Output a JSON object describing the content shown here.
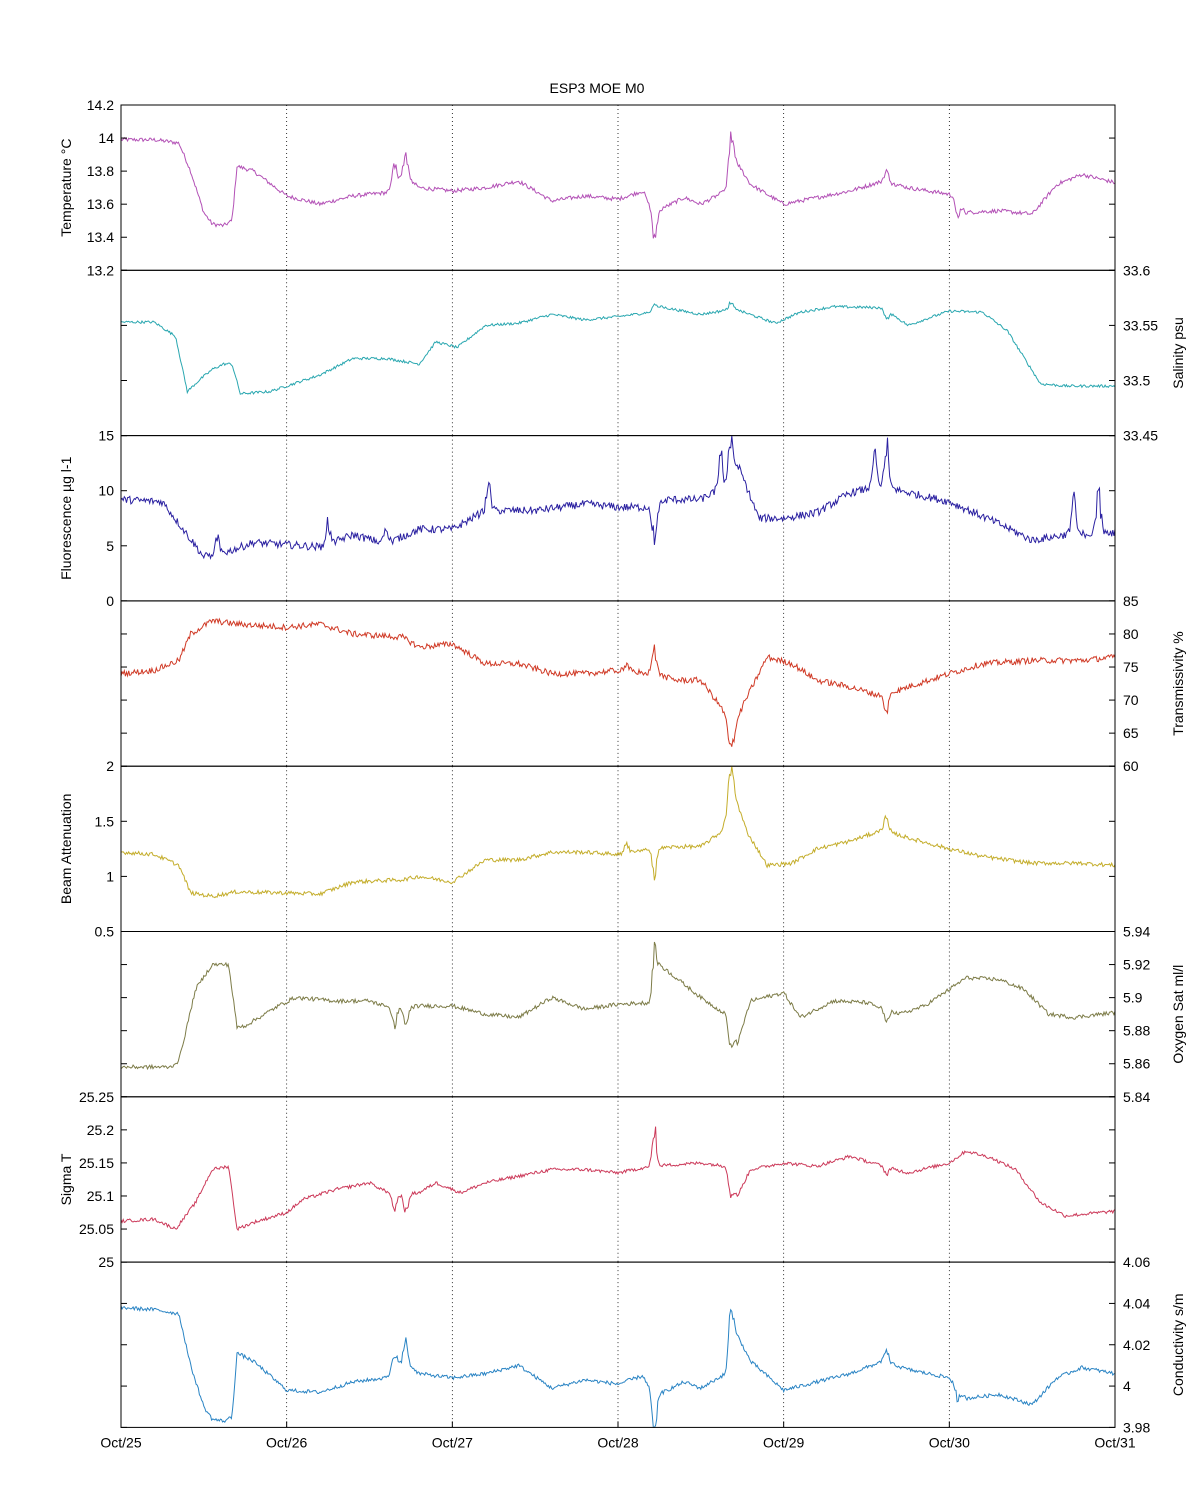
{
  "chart_data": {
    "type": "line",
    "title": "ESP3 MOE   M0",
    "x_ticks": [
      "Oct/25",
      "Oct/26",
      "Oct/27",
      "Oct/28",
      "Oct/29",
      "Oct/30",
      "Oct/31"
    ],
    "xlim_days": [
      25,
      31
    ],
    "grid": "vertical dotted at each day",
    "panels": [
      {
        "name": "Temperature",
        "ylabel": "Temperature °C",
        "axis_side": "left",
        "ylim": [
          13.2,
          14.2
        ],
        "yticks": [
          "13.2",
          "13.4",
          "13.6",
          "13.8",
          "14",
          "14.2"
        ],
        "ytick_values": [
          13.2,
          13.4,
          13.6,
          13.8,
          14.0,
          14.2
        ],
        "color": "#b351b6",
        "noise": 0.012,
        "spikes": [
          [
            26.65,
            0.12
          ],
          [
            26.72,
            0.15
          ],
          [
            28.22,
            -0.22
          ],
          [
            28.68,
            0.2
          ],
          [
            29.62,
            0.07
          ],
          [
            30.05,
            -0.08
          ]
        ],
        "series": {
          "x": [
            25.0,
            25.2,
            25.35,
            25.42,
            25.5,
            25.55,
            25.62,
            25.67,
            25.7,
            25.8,
            26.0,
            26.2,
            26.4,
            26.6,
            26.7,
            26.8,
            27.0,
            27.2,
            27.4,
            27.6,
            27.8,
            28.0,
            28.15,
            28.22,
            28.4,
            28.5,
            28.65,
            28.7,
            28.8,
            29.0,
            29.2,
            29.4,
            29.6,
            29.75,
            30.0,
            30.1,
            30.3,
            30.5,
            30.65,
            30.8,
            31.0
          ],
          "y": [
            13.99,
            13.99,
            13.97,
            13.8,
            13.55,
            13.48,
            13.47,
            13.5,
            13.83,
            13.8,
            13.65,
            13.6,
            13.65,
            13.67,
            13.78,
            13.7,
            13.68,
            13.7,
            13.74,
            13.62,
            13.65,
            13.63,
            13.68,
            13.55,
            13.64,
            13.6,
            13.68,
            13.88,
            13.72,
            13.6,
            13.64,
            13.68,
            13.74,
            13.7,
            13.66,
            13.55,
            13.56,
            13.54,
            13.72,
            13.78,
            13.73
          ]
        }
      },
      {
        "name": "Salinity",
        "ylabel": "Salinity psu",
        "axis_side": "right",
        "ylim": [
          33.45,
          33.6
        ],
        "yticks": [
          "33.45",
          "33.5",
          "33.55",
          "33.6"
        ],
        "ytick_values": [
          33.45,
          33.5,
          33.55,
          33.6
        ],
        "color": "#2aa7b0",
        "noise": 0.0012,
        "spikes": [
          [
            28.22,
            0.006
          ],
          [
            28.68,
            0.007
          ],
          [
            29.62,
            -0.01
          ]
        ],
        "series": {
          "x": [
            25.0,
            25.2,
            25.33,
            25.4,
            25.47,
            25.55,
            25.62,
            25.67,
            25.72,
            25.9,
            26.2,
            26.4,
            26.6,
            26.8,
            26.9,
            27.03,
            27.2,
            27.4,
            27.6,
            27.8,
            28.0,
            28.2,
            28.25,
            28.5,
            28.7,
            28.95,
            29.1,
            29.3,
            29.6,
            29.75,
            29.9,
            30.0,
            30.2,
            30.35,
            30.55,
            30.7,
            31.0
          ],
          "y": [
            33.553,
            33.553,
            33.54,
            33.49,
            33.5,
            33.51,
            33.515,
            33.515,
            33.488,
            33.49,
            33.505,
            33.52,
            33.52,
            33.515,
            33.535,
            33.53,
            33.55,
            33.552,
            33.56,
            33.555,
            33.558,
            33.562,
            33.567,
            33.56,
            33.565,
            33.552,
            33.562,
            33.567,
            33.566,
            33.55,
            33.558,
            33.563,
            33.562,
            33.545,
            33.497,
            33.495,
            33.495
          ]
        }
      },
      {
        "name": "Fluorescence",
        "ylabel": "Fluorescence µg l-1",
        "axis_side": "left",
        "ylim": [
          0,
          15
        ],
        "yticks": [
          "0",
          "5",
          "10",
          "15"
        ],
        "ytick_values": [
          0,
          5,
          10,
          15
        ],
        "color": "#2b21a1",
        "noise": 0.35,
        "spikes": [
          [
            25.58,
            1.5
          ],
          [
            26.25,
            2.0
          ],
          [
            26.6,
            1.5
          ],
          [
            27.22,
            2.5
          ],
          [
            28.22,
            -3.5
          ],
          [
            28.62,
            3.0
          ],
          [
            28.68,
            4.0
          ],
          [
            29.55,
            3.0
          ],
          [
            29.62,
            4.2
          ],
          [
            30.75,
            3.5
          ],
          [
            30.9,
            4.5
          ]
        ],
        "series": {
          "x": [
            25.0,
            25.25,
            25.35,
            25.5,
            25.65,
            25.8,
            26.0,
            26.2,
            26.4,
            26.6,
            26.8,
            27.0,
            27.2,
            27.5,
            27.8,
            28.0,
            28.2,
            28.3,
            28.5,
            28.65,
            28.72,
            28.85,
            29.0,
            29.2,
            29.4,
            29.6,
            29.7,
            30.0,
            30.3,
            30.5,
            30.7,
            31.0
          ],
          "y": [
            9.2,
            9.0,
            7.0,
            4.0,
            4.5,
            5.3,
            5.1,
            4.9,
            6.0,
            5.2,
            6.5,
            6.5,
            8.2,
            8.2,
            8.8,
            8.5,
            8.5,
            9.2,
            9.2,
            10.5,
            12.5,
            7.5,
            7.5,
            8.0,
            9.8,
            10.5,
            10.0,
            9.0,
            7.0,
            5.5,
            6.0,
            6.2
          ]
        }
      },
      {
        "name": "Transmissivity",
        "ylabel": "Transmissivity %",
        "axis_side": "right",
        "ylim": [
          60,
          85
        ],
        "yticks": [
          "60",
          "65",
          "70",
          "75",
          "80",
          "85"
        ],
        "ytick_values": [
          60,
          65,
          70,
          75,
          80,
          85
        ],
        "color": "#d03a26",
        "noise": 0.45,
        "spikes": [
          [
            28.22,
            4.5
          ],
          [
            28.68,
            -4.0
          ],
          [
            29.62,
            -2.5
          ],
          [
            28.05,
            1.5
          ]
        ],
        "series": {
          "x": [
            25.0,
            25.2,
            25.35,
            25.42,
            25.55,
            25.7,
            26.0,
            26.2,
            26.4,
            26.7,
            26.8,
            27.0,
            27.2,
            27.4,
            27.6,
            27.8,
            28.0,
            28.22,
            28.35,
            28.5,
            28.62,
            28.7,
            28.75,
            28.9,
            29.05,
            29.2,
            29.4,
            29.6,
            29.75,
            30.0,
            30.2,
            30.5,
            30.8,
            31.0
          ],
          "y": [
            74.0,
            74.5,
            76.0,
            80.0,
            82.0,
            81.5,
            81.0,
            81.5,
            80.0,
            79.5,
            78.0,
            78.5,
            75.5,
            75.5,
            74.0,
            74.0,
            74.5,
            74.0,
            73.0,
            73.0,
            69.0,
            65.0,
            69.0,
            76.5,
            75.5,
            73.0,
            72.0,
            70.5,
            72.0,
            74.0,
            75.5,
            76.0,
            76.0,
            76.5
          ]
        }
      },
      {
        "name": "Beam Attenuation",
        "ylabel": "Beam Attenuation",
        "axis_side": "left",
        "ylim": [
          0.5,
          2
        ],
        "yticks": [
          "0.5",
          "1",
          "1.5",
          "2"
        ],
        "ytick_values": [
          0.5,
          1.0,
          1.5,
          2.0
        ],
        "color": "#c4ad2b",
        "noise": 0.018,
        "spikes": [
          [
            28.22,
            -0.25
          ],
          [
            28.68,
            0.35
          ],
          [
            29.62,
            0.15
          ],
          [
            28.05,
            0.1
          ]
        ],
        "series": {
          "x": [
            25.0,
            25.2,
            25.35,
            25.42,
            25.55,
            25.7,
            26.0,
            26.2,
            26.4,
            26.7,
            26.8,
            27.0,
            27.2,
            27.4,
            27.6,
            27.8,
            28.0,
            28.22,
            28.35,
            28.5,
            28.62,
            28.7,
            28.78,
            28.9,
            29.05,
            29.2,
            29.4,
            29.6,
            29.75,
            30.0,
            30.2,
            30.5,
            30.8,
            31.0
          ],
          "y": [
            1.22,
            1.2,
            1.1,
            0.85,
            0.82,
            0.86,
            0.85,
            0.84,
            0.95,
            0.97,
            1.0,
            0.95,
            1.15,
            1.15,
            1.22,
            1.22,
            1.2,
            1.25,
            1.27,
            1.27,
            1.4,
            1.75,
            1.4,
            1.1,
            1.12,
            1.25,
            1.32,
            1.42,
            1.35,
            1.25,
            1.18,
            1.12,
            1.12,
            1.1
          ]
        }
      },
      {
        "name": "Oxygen Sat",
        "ylabel": "Oxygen Sat ml/l",
        "axis_side": "right",
        "ylim": [
          5.84,
          5.94
        ],
        "yticks": [
          "5.84",
          "5.86",
          "5.88",
          "5.9",
          "5.92",
          "5.94"
        ],
        "ytick_values": [
          5.84,
          5.86,
          5.88,
          5.9,
          5.92,
          5.94
        ],
        "color": "#7d7c48",
        "noise": 0.0012,
        "spikes": [
          [
            26.65,
            -0.01
          ],
          [
            26.72,
            -0.012
          ],
          [
            28.22,
            0.025
          ],
          [
            28.68,
            -0.012
          ],
          [
            29.62,
            -0.008
          ]
        ],
        "series": {
          "x": [
            25.0,
            25.3,
            25.35,
            25.45,
            25.55,
            25.65,
            25.7,
            25.75,
            25.95,
            26.05,
            26.3,
            26.5,
            26.65,
            26.8,
            27.0,
            27.2,
            27.4,
            27.6,
            27.8,
            28.0,
            28.2,
            28.25,
            28.5,
            28.65,
            28.72,
            28.8,
            29.0,
            29.1,
            29.3,
            29.5,
            29.7,
            29.85,
            30.0,
            30.1,
            30.3,
            30.45,
            30.6,
            30.75,
            31.0
          ],
          "y": [
            5.858,
            5.858,
            5.862,
            5.905,
            5.92,
            5.92,
            5.882,
            5.883,
            5.895,
            5.9,
            5.898,
            5.898,
            5.893,
            5.895,
            5.895,
            5.89,
            5.888,
            5.9,
            5.893,
            5.896,
            5.897,
            5.92,
            5.9,
            5.89,
            5.872,
            5.898,
            5.903,
            5.888,
            5.898,
            5.897,
            5.89,
            5.895,
            5.905,
            5.912,
            5.911,
            5.905,
            5.89,
            5.888,
            5.891
          ]
        }
      },
      {
        "name": "Sigma T",
        "ylabel": "Sigma T",
        "axis_side": "left",
        "ylim": [
          25,
          25.25
        ],
        "yticks": [
          "25",
          "25.05",
          "25.1",
          "25.15",
          "25.2",
          "25.25"
        ],
        "ytick_values": [
          25.0,
          25.05,
          25.1,
          25.15,
          25.2,
          25.25
        ],
        "color": "#cc3a5a",
        "noise": 0.0025,
        "spikes": [
          [
            26.65,
            -0.025
          ],
          [
            26.72,
            -0.03
          ],
          [
            28.22,
            0.055
          ],
          [
            28.68,
            -0.03
          ],
          [
            29.62,
            -0.012
          ]
        ],
        "series": {
          "x": [
            25.0,
            25.2,
            25.33,
            25.45,
            25.55,
            25.65,
            25.7,
            25.8,
            26.0,
            26.1,
            26.3,
            26.5,
            26.65,
            26.8,
            26.9,
            27.05,
            27.2,
            27.4,
            27.6,
            27.8,
            28.0,
            28.2,
            28.5,
            28.65,
            28.72,
            28.8,
            29.0,
            29.2,
            29.4,
            29.6,
            29.75,
            30.0,
            30.1,
            30.25,
            30.4,
            30.55,
            30.7,
            31.0
          ],
          "y": [
            25.062,
            25.065,
            25.05,
            25.09,
            25.14,
            25.145,
            25.05,
            25.06,
            25.075,
            25.095,
            25.11,
            25.12,
            25.1,
            25.105,
            25.12,
            25.105,
            25.12,
            25.13,
            25.14,
            25.14,
            25.135,
            25.145,
            25.15,
            25.145,
            25.1,
            25.14,
            25.15,
            25.145,
            25.16,
            25.145,
            25.135,
            25.15,
            25.168,
            25.158,
            25.14,
            25.09,
            25.07,
            25.077
          ]
        }
      },
      {
        "name": "Conductivity",
        "ylabel": "Conductivity s/m",
        "axis_side": "right",
        "ylim": [
          3.98,
          4.06
        ],
        "yticks": [
          "3.98",
          "4",
          "4.02",
          "4.04",
          "4.06"
        ],
        "ytick_values": [
          3.98,
          4.0,
          4.02,
          4.04,
          4.06
        ],
        "color": "#2a84c4",
        "noise": 0.0009,
        "spikes": [
          [
            26.65,
            0.01
          ],
          [
            26.72,
            0.011
          ],
          [
            28.22,
            -0.02
          ],
          [
            28.68,
            0.017
          ],
          [
            29.62,
            0.006
          ],
          [
            30.05,
            -0.006
          ]
        ],
        "series": {
          "x": [
            25.0,
            25.2,
            25.35,
            25.42,
            25.5,
            25.55,
            25.62,
            25.67,
            25.7,
            25.8,
            26.0,
            26.2,
            26.4,
            26.6,
            26.7,
            26.8,
            27.0,
            27.2,
            27.4,
            27.6,
            27.8,
            28.0,
            28.15,
            28.22,
            28.4,
            28.5,
            28.65,
            28.7,
            28.8,
            29.0,
            29.2,
            29.4,
            29.6,
            29.75,
            30.0,
            30.1,
            30.3,
            30.5,
            30.65,
            30.8,
            31.0
          ],
          "y": [
            4.038,
            4.037,
            4.035,
            4.01,
            3.99,
            3.984,
            3.983,
            3.985,
            4.016,
            4.012,
            3.998,
            3.997,
            4.002,
            4.004,
            4.012,
            4.006,
            4.004,
            4.006,
            4.01,
            3.999,
            4.003,
            4.001,
            4.005,
            3.995,
            4.002,
            3.999,
            4.006,
            4.028,
            4.012,
            3.998,
            4.002,
            4.006,
            4.012,
            4.008,
            4.004,
            3.994,
            3.996,
            3.991,
            4.004,
            4.009,
            4.006
          ]
        }
      }
    ]
  }
}
